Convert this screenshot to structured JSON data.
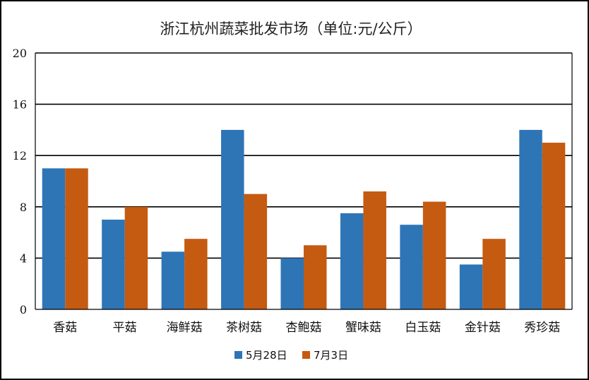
{
  "chart_data": {
    "type": "bar",
    "title": "浙江杭州蔬菜批发市场（单位:元/公斤）",
    "xlabel": "",
    "ylabel": "",
    "categories": [
      "香菇",
      "平菇",
      "海鲜菇",
      "茶树菇",
      "杏鲍菇",
      "蟹味菇",
      "白玉菇",
      "金针菇",
      "秀珍菇"
    ],
    "series": [
      {
        "name": "5月28日",
        "color": "#2E75B6",
        "values": [
          11,
          7,
          4.5,
          14,
          4,
          7.5,
          6.6,
          3.5,
          14
        ]
      },
      {
        "name": "7月3日",
        "color": "#C55A11",
        "values": [
          11,
          8,
          5.5,
          9,
          5,
          9.2,
          8.4,
          5.5,
          13
        ]
      }
    ],
    "ylim": [
      0,
      20
    ],
    "yticks": [
      0,
      4,
      8,
      12,
      16,
      20
    ],
    "grid": true,
    "legend_position": "bottom"
  }
}
